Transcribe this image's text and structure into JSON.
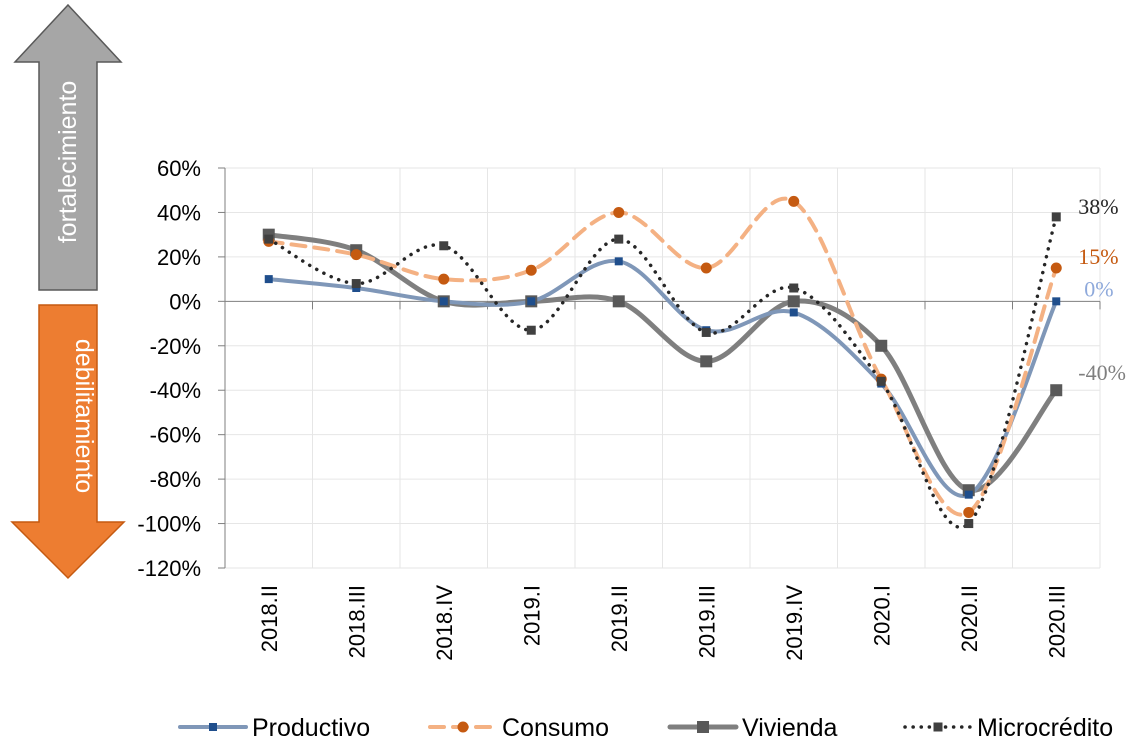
{
  "arrows": {
    "up_label": "fortalecimiento",
    "down_label": "debilitamiento",
    "up_color": "#a6a6a6",
    "down_color": "#ed7d31"
  },
  "chart_data": {
    "type": "line",
    "categories": [
      "2018.II",
      "2018.III",
      "2018.IV",
      "2019.I",
      "2019.II",
      "2019.III",
      "2019.IV",
      "2020.I",
      "2020.II",
      "2020.III"
    ],
    "ylim": [
      -1.2,
      0.6
    ],
    "yticks": [
      0.6,
      0.4,
      0.2,
      0,
      -0.2,
      -0.4,
      -0.6,
      -0.8,
      -1.0,
      -1.2
    ],
    "ytick_labels": [
      "60%",
      "40%",
      "20%",
      "0%",
      "-20%",
      "-40%",
      "-60%",
      "-80%",
      "-100%",
      "-120%"
    ],
    "grid": true,
    "legend_position": "bottom",
    "series": [
      {
        "name": "Productivo",
        "color": "#7f97b8",
        "marker_color": "#1f4e8c",
        "marker": "square",
        "dash": "solid",
        "values": [
          0.1,
          0.06,
          0.0,
          0.0,
          0.18,
          -0.13,
          -0.05,
          -0.37,
          -0.87,
          0.0
        ]
      },
      {
        "name": "Consumo",
        "color": "#f4b183",
        "marker_color": "#c55a11",
        "marker": "circle",
        "dash": "dashed",
        "values": [
          0.27,
          0.21,
          0.1,
          0.14,
          0.4,
          0.15,
          0.45,
          -0.35,
          -0.95,
          0.15
        ]
      },
      {
        "name": "Vivienda",
        "color": "#7f7f7f",
        "marker_color": "#595959",
        "marker": "square",
        "dash": "solid",
        "values": [
          0.3,
          0.23,
          0.0,
          0.0,
          0.0,
          -0.27,
          0.0,
          -0.2,
          -0.85,
          -0.4
        ]
      },
      {
        "name": "Microcrédito",
        "color": "#262626",
        "marker_color": "#404040",
        "marker": "square",
        "dash": "dotted",
        "values": [
          0.28,
          0.08,
          0.25,
          -0.13,
          0.28,
          -0.14,
          0.06,
          -0.36,
          -1.0,
          0.38
        ]
      }
    ],
    "end_labels": [
      {
        "text": "38%",
        "series": "Microcrédito",
        "color": "#262626"
      },
      {
        "text": "15%",
        "series": "Consumo",
        "color": "#c55a11"
      },
      {
        "text": "0%",
        "series": "Productivo",
        "color": "#8ea9db"
      },
      {
        "text": "-40%",
        "series": "Vivienda",
        "color": "#7f7f7f"
      }
    ]
  }
}
